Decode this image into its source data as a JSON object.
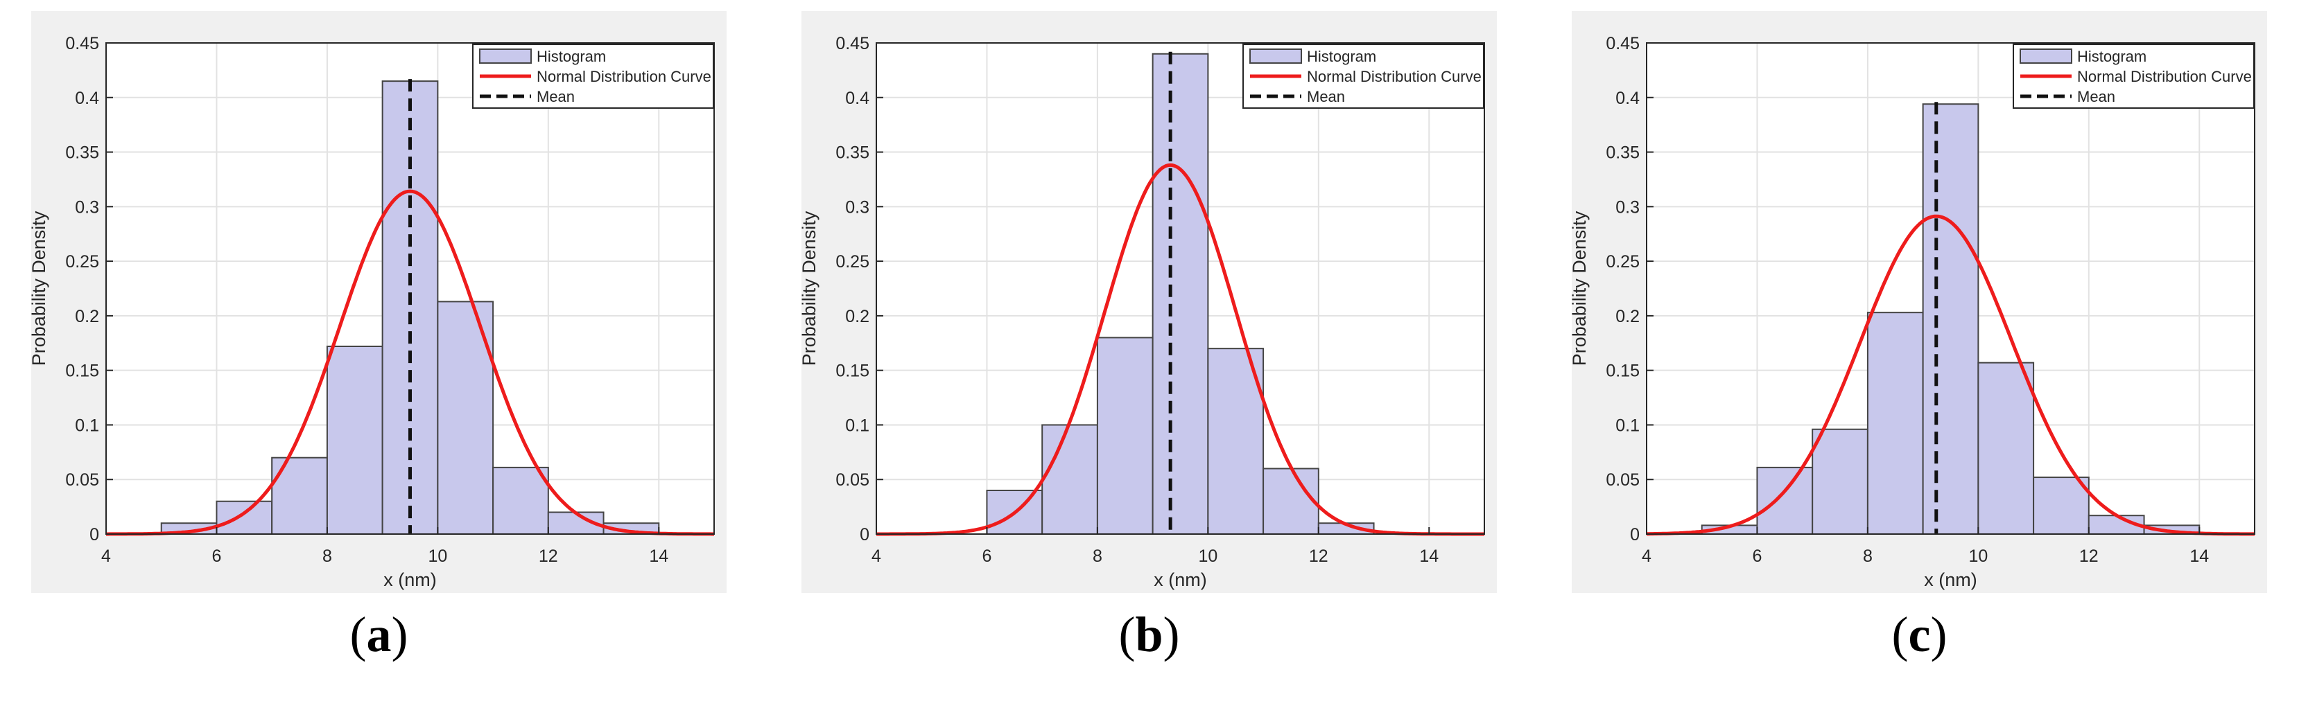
{
  "colors": {
    "panel_bg": "#f0f0f0",
    "axes_bg": "#ffffff",
    "bar_fill": "#c8c8ec",
    "bar_edge": "#444444",
    "curve": "#ee1c1c",
    "mean_line": "#111111",
    "grid": "#e2e2e2"
  },
  "chart_data": [
    {
      "type": "bar",
      "panel_label": "a",
      "xlabel": "x (nm)",
      "ylabel": "Probability Density",
      "xlim": [
        4,
        15
      ],
      "ylim": [
        0,
        0.45
      ],
      "xticks": [
        4,
        6,
        8,
        10,
        12,
        14
      ],
      "yticks": [
        0,
        0.05,
        0.1,
        0.15,
        0.2,
        0.25,
        0.3,
        0.35,
        0.4,
        0.45
      ],
      "grid": true,
      "legend_position": "top-right",
      "legend": [
        "Histogram",
        "Normal Distribution Curve",
        "Mean"
      ],
      "bin_edges": [
        5,
        6,
        7,
        8,
        9,
        10,
        11,
        12,
        13,
        14
      ],
      "values": [
        0.01,
        0.03,
        0.07,
        0.172,
        0.415,
        0.213,
        0.061,
        0.02,
        0.01
      ],
      "normal_curve": {
        "mean": 9.5,
        "std": 1.27
      },
      "mean": 9.5
    },
    {
      "type": "bar",
      "panel_label": "b",
      "xlabel": "x (nm)",
      "ylabel": "Probability Density",
      "xlim": [
        4,
        15
      ],
      "ylim": [
        0,
        0.45
      ],
      "xticks": [
        4,
        6,
        8,
        10,
        12,
        14
      ],
      "yticks": [
        0,
        0.05,
        0.1,
        0.15,
        0.2,
        0.25,
        0.3,
        0.35,
        0.4,
        0.45
      ],
      "grid": true,
      "legend_position": "top-right",
      "legend": [
        "Histogram",
        "Normal Distribution Curve",
        "Mean"
      ],
      "bin_edges": [
        6,
        7,
        8,
        9,
        10,
        11,
        12,
        13
      ],
      "values": [
        0.04,
        0.1,
        0.18,
        0.44,
        0.17,
        0.06,
        0.01
      ],
      "normal_curve": {
        "mean": 9.32,
        "std": 1.18
      },
      "mean": 9.32
    },
    {
      "type": "bar",
      "panel_label": "c",
      "xlabel": "x (nm)",
      "ylabel": "Probability Density",
      "xlim": [
        4,
        15
      ],
      "ylim": [
        0,
        0.45
      ],
      "xticks": [
        4,
        6,
        8,
        10,
        12,
        14
      ],
      "yticks": [
        0,
        0.05,
        0.1,
        0.15,
        0.2,
        0.25,
        0.3,
        0.35,
        0.4,
        0.45
      ],
      "grid": true,
      "legend_position": "top-right",
      "legend": [
        "Histogram",
        "Normal Distribution Curve",
        "Mean"
      ],
      "bin_edges": [
        5,
        6,
        7,
        8,
        9,
        10,
        11,
        12,
        13,
        14
      ],
      "values": [
        0.008,
        0.061,
        0.096,
        0.203,
        0.394,
        0.157,
        0.052,
        0.017,
        0.008
      ],
      "normal_curve": {
        "mean": 9.24,
        "std": 1.37
      },
      "mean": 9.24
    }
  ]
}
